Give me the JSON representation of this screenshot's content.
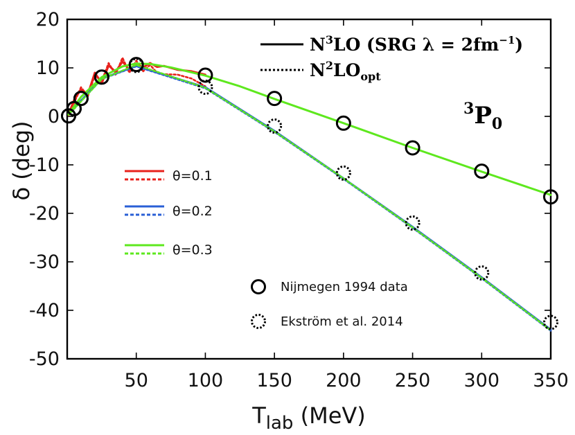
{
  "chart_data": {
    "type": "line",
    "xlabel_main": "T",
    "xlabel_sub": "lab",
    "xlabel_unit": " (MeV)",
    "ylabel": "δ (deg)",
    "xlim": [
      0,
      350
    ],
    "ylim": [
      -50,
      20
    ],
    "xticks": [
      "50",
      "100",
      "150",
      "200",
      "250",
      "300",
      "350"
    ],
    "xtick_values": [
      50,
      100,
      150,
      200,
      250,
      300,
      350
    ],
    "yticks": [
      "20",
      "10",
      "0",
      "-10",
      "-20",
      "-30",
      "-40",
      "-50"
    ],
    "ytick_values": [
      20,
      10,
      0,
      -10,
      -20,
      -30,
      -40,
      -50
    ],
    "state_label": {
      "sup": "3",
      "main": "P",
      "sub": "0"
    },
    "legend_top": [
      {
        "key": "n3lo",
        "label_prefix": "N",
        "label_sup": "3",
        "label_rest": "LO (SRG λ = 2fm",
        "label_sup2": "−1",
        "label_end": ")",
        "style": "solid",
        "color": "#000000"
      },
      {
        "key": "n2lo",
        "label_prefix": "N",
        "label_sup": "2",
        "label_rest": "LO",
        "label_sub": "opt",
        "style": "dotted",
        "color": "#000000"
      }
    ],
    "legend_theta": [
      {
        "label": "θ=0.1",
        "solid_color": "#e8211c",
        "dashed_color": "#e8211c"
      },
      {
        "label": "θ=0.2",
        "solid_color": "#2a5fd6",
        "dashed_color": "#2a5fd6"
      },
      {
        "label": "θ=0.3",
        "solid_color": "#5ee81e",
        "dashed_color": "#5ee81e"
      }
    ],
    "legend_markers": [
      {
        "label": "Nijmegen 1994 data",
        "style": "solid"
      },
      {
        "label": "Ekström et al. 2014",
        "style": "dotted"
      }
    ],
    "nijmegen_data": {
      "x": [
        1,
        5,
        10,
        25,
        50,
        100,
        150,
        200,
        250,
        300,
        350
      ],
      "y": [
        0.1,
        1.6,
        3.7,
        8.1,
        10.7,
        8.5,
        3.7,
        -1.4,
        -6.5,
        -11.3,
        -16.6
      ]
    },
    "ekstrom_data": {
      "x": [
        1,
        5,
        10,
        25,
        50,
        100,
        150,
        200,
        250,
        300,
        350
      ],
      "y": [
        0.1,
        1.6,
        3.7,
        8.1,
        10.5,
        6.0,
        -2.0,
        -11.7,
        -22.0,
        -32.3,
        -42.5
      ]
    },
    "series": [
      {
        "name": "θ=0.1 N3LO",
        "color": "#e8211c",
        "style": "solid",
        "x": [
          1,
          5,
          10,
          15,
          20,
          25,
          30,
          35,
          40,
          45,
          50,
          55,
          60,
          65,
          70,
          80,
          90,
          100
        ],
        "y": [
          0.4,
          3.4,
          5.6,
          4.6,
          9.0,
          6.8,
          10.5,
          9.2,
          11.3,
          9.6,
          10.8,
          10.1,
          11.0,
          10.2,
          10.4,
          9.6,
          9.3,
          8.6
        ]
      },
      {
        "name": "θ=0.1 N2LOopt",
        "color": "#e8211c",
        "style": "dotted",
        "x": [
          1,
          5,
          10,
          15,
          20,
          25,
          30,
          35,
          40,
          45,
          50,
          55,
          60,
          65,
          70,
          80,
          90,
          100
        ],
        "y": [
          0.2,
          2.8,
          6.0,
          4.2,
          8.5,
          7.3,
          11.0,
          8.6,
          12.1,
          9.0,
          11.5,
          9.3,
          10.6,
          9.0,
          8.7,
          8.6,
          7.8,
          6.2
        ]
      },
      {
        "name": "θ=0.2 N3LO",
        "color": "#2a5fd6",
        "style": "solid",
        "x": [
          1,
          25,
          50,
          100,
          150,
          200,
          250,
          300,
          350
        ],
        "y": [
          0.5,
          7.8,
          10.4,
          6.0,
          -3.0,
          -12.8,
          -22.8,
          -33.2,
          -44.0
        ]
      },
      {
        "name": "θ=0.2 N2LOopt",
        "color": "#2a5fd6",
        "style": "dotted",
        "x": [
          1,
          25,
          50,
          100,
          150,
          200,
          250,
          300,
          350
        ],
        "y": [
          0.4,
          7.7,
          10.3,
          5.8,
          -3.2,
          -12.9,
          -23.0,
          -33.4,
          -44.2
        ]
      },
      {
        "name": "θ=0.3 N3LO",
        "color": "#5ee81e",
        "style": "solid",
        "x": [
          1,
          10,
          25,
          40,
          50,
          60,
          75,
          100,
          125,
          150,
          175,
          200,
          250,
          300,
          350
        ],
        "y": [
          0.5,
          4.0,
          8.1,
          10.3,
          10.9,
          10.8,
          10.1,
          8.4,
          6.2,
          3.6,
          1.1,
          -1.4,
          -6.5,
          -11.4,
          -16.2
        ]
      },
      {
        "name": "θ=0.3 N2LOopt",
        "color": "#5ee81e",
        "style": "dotted",
        "x": [
          1,
          25,
          50,
          100,
          150,
          200,
          250,
          300,
          350
        ],
        "y": [
          0.3,
          7.7,
          10.6,
          5.9,
          -3.1,
          -12.8,
          -22.9,
          -33.3,
          -44.1
        ]
      }
    ]
  }
}
